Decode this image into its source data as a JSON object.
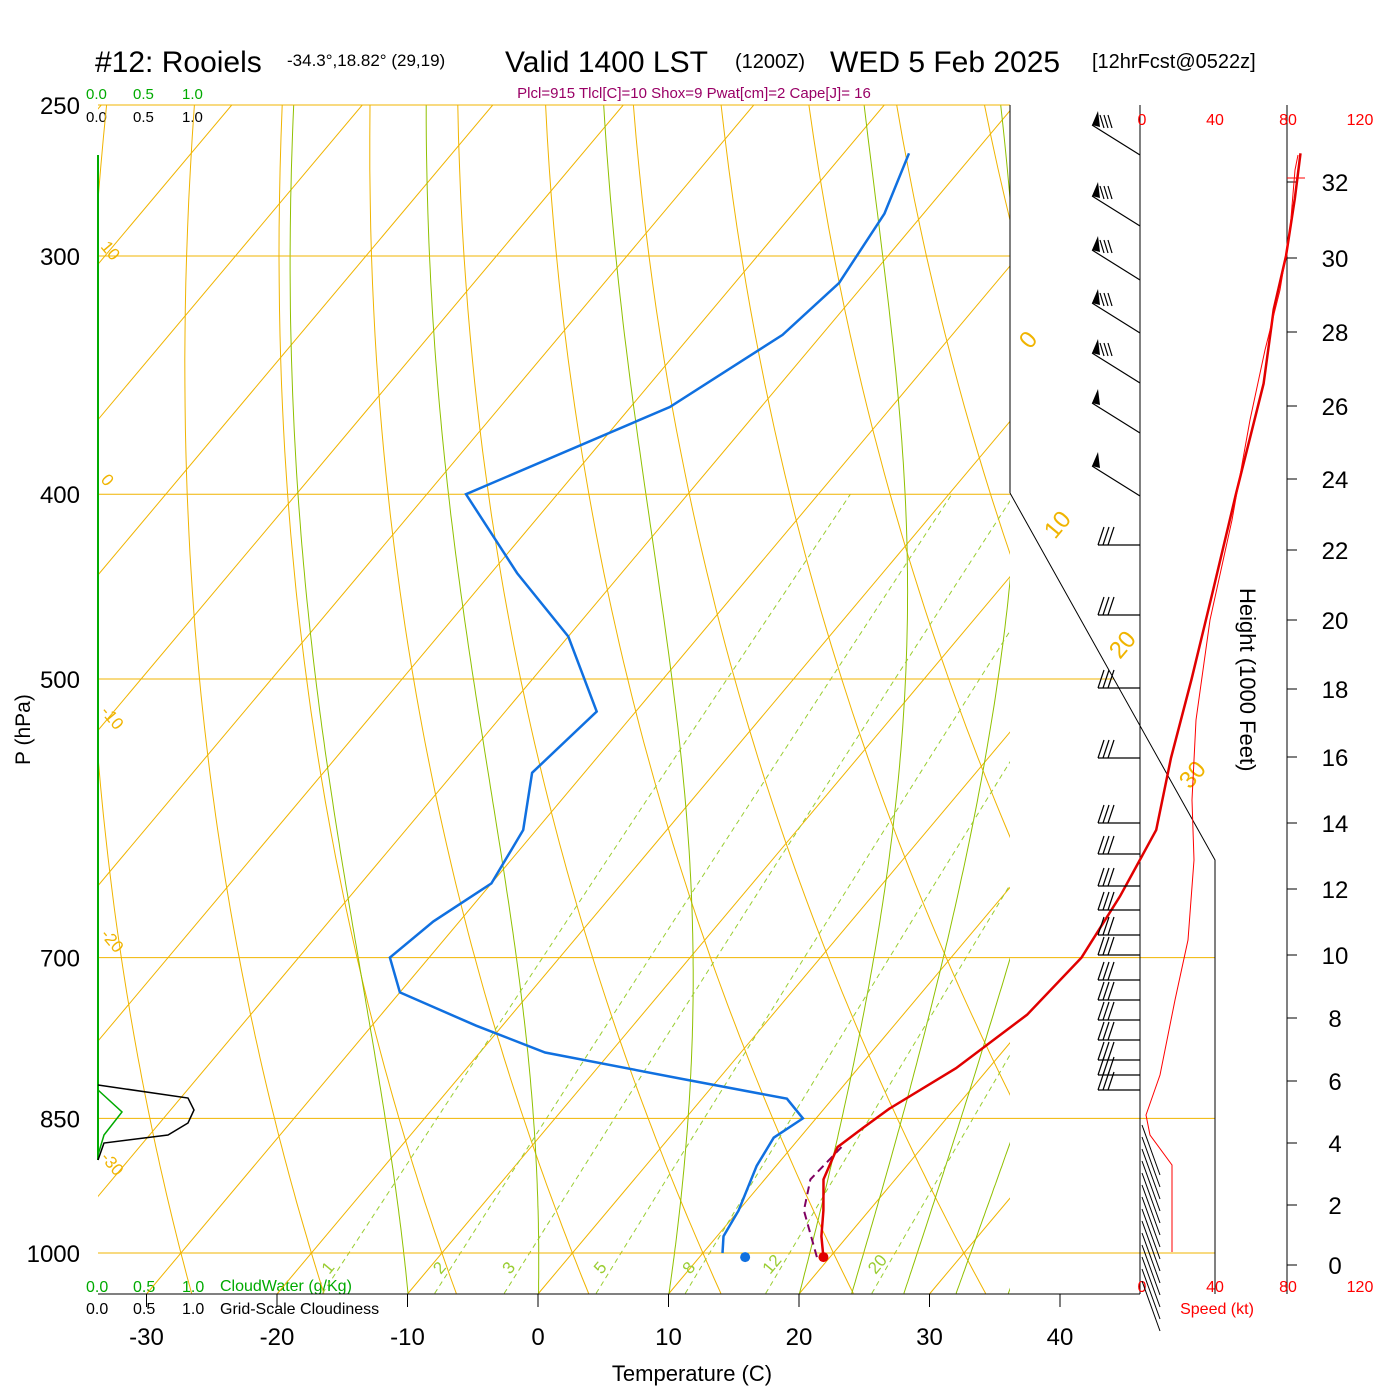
{
  "header": {
    "station": "#12: Rooiels",
    "coords": "-34.3°,18.82° (29,19)",
    "valid": "Valid 1400 LST",
    "zulu": "(1200Z)",
    "date": "WED 5 Feb 2025",
    "fcst": "[12hrFcst@0522z]",
    "indices": "Plcl=915 Tlcl[C]=10 Shox=9 Pwat[cm]=2 Cape[J]= 16"
  },
  "left_scales": {
    "cloudwater_ticks": [
      "0.0",
      "0.5",
      "1.0"
    ],
    "cloudiness_ticks": [
      "0.0",
      "0.5",
      "1.0"
    ],
    "cloudwater_label": "CloudWater (g/Kg)",
    "cloudiness_label": "Grid-Scale Cloudiness"
  },
  "speed_scale": {
    "ticks": [
      "0",
      "40",
      "80",
      "120"
    ],
    "label": "Speed (kt)"
  },
  "chart_data": {
    "type": "skewt",
    "xlabel": "Temperature (C)",
    "ylabel": "P (hPa)",
    "y2label": "Height (1000 Feet)",
    "x_ticks": [
      -30,
      -20,
      -10,
      0,
      10,
      20,
      30,
      40
    ],
    "p_ticks": [
      250,
      300,
      400,
      500,
      700,
      850,
      1000
    ],
    "height_ticks_kft": [
      0,
      2,
      4,
      6,
      8,
      10,
      12,
      14,
      16,
      18,
      20,
      22,
      24,
      26,
      28,
      30,
      32
    ],
    "isotherm_labels": [
      "10",
      "0",
      "-10",
      "-20",
      "-30"
    ],
    "height_side_labels": [
      "0",
      "10",
      "20",
      "30"
    ],
    "mixing_ratio_labels": [
      "1",
      "2",
      "3",
      "5",
      "8",
      "12",
      "20"
    ],
    "temperature": [
      {
        "p": 1005,
        "t": 19.5
      },
      {
        "p": 980,
        "t": 18.0
      },
      {
        "p": 950,
        "t": 16.5
      },
      {
        "p": 915,
        "t": 14.5
      },
      {
        "p": 880,
        "t": 13.5
      },
      {
        "p": 860,
        "t": 14.2
      },
      {
        "p": 840,
        "t": 15.0
      },
      {
        "p": 800,
        "t": 17.5
      },
      {
        "p": 750,
        "t": 19.5
      },
      {
        "p": 700,
        "t": 20.0
      },
      {
        "p": 650,
        "t": 19.0
      },
      {
        "p": 600,
        "t": 17.5
      },
      {
        "p": 550,
        "t": 14.0
      },
      {
        "p": 500,
        "t": 10.5
      },
      {
        "p": 450,
        "t": 6.5
      },
      {
        "p": 400,
        "t": 2.0
      },
      {
        "p": 350,
        "t": -3.0
      },
      {
        "p": 320,
        "t": -7.0
      },
      {
        "p": 300,
        "t": -9.5
      },
      {
        "p": 280,
        "t": -12.5
      },
      {
        "p": 265,
        "t": -15.0
      }
    ],
    "dewpoint": [
      {
        "p": 1000,
        "t": 11.5
      },
      {
        "p": 980,
        "t": 10.5
      },
      {
        "p": 950,
        "t": 10.0
      },
      {
        "p": 900,
        "t": 8.5
      },
      {
        "p": 870,
        "t": 8.0
      },
      {
        "p": 850,
        "t": 9.0
      },
      {
        "p": 830,
        "t": 6.5
      },
      {
        "p": 810,
        "t": -3.0
      },
      {
        "p": 785,
        "t": -15.0
      },
      {
        "p": 760,
        "t": -22.0
      },
      {
        "p": 730,
        "t": -30.0
      },
      {
        "p": 700,
        "t": -33.0
      },
      {
        "p": 670,
        "t": -32.0
      },
      {
        "p": 640,
        "t": -30.0
      },
      {
        "p": 600,
        "t": -31.0
      },
      {
        "p": 560,
        "t": -34.0
      },
      {
        "p": 520,
        "t": -33.0
      },
      {
        "p": 475,
        "t": -40.0
      },
      {
        "p": 440,
        "t": -48.0
      },
      {
        "p": 400,
        "t": -57.0
      },
      {
        "p": 360,
        "t": -47.0
      },
      {
        "p": 330,
        "t": -43.0
      },
      {
        "p": 310,
        "t": -42.0
      },
      {
        "p": 285,
        "t": -43.0
      },
      {
        "p": 265,
        "t": -45.0
      }
    ],
    "surface_temp": {
      "p": 1005,
      "t": 19.5
    },
    "surface_dewpoint": {
      "p": 1005,
      "t": 13.5
    },
    "parcel": [
      {
        "p": 1005,
        "t": 19.0
      },
      {
        "p": 950,
        "t": 15.0
      },
      {
        "p": 915,
        "t": 13.5
      },
      {
        "p": 880,
        "t": 13.8
      }
    ]
  },
  "colors": {
    "temperature": "#e00000",
    "dewpoint": "#1070e0",
    "parcel": "#800060",
    "isobar": "#f0b400",
    "moist_adiabat": "#90c000",
    "mixing_ratio": "#9acd32",
    "cloudwater": "#00aa00",
    "index_text": "#990066",
    "speed": "#ff0000"
  }
}
